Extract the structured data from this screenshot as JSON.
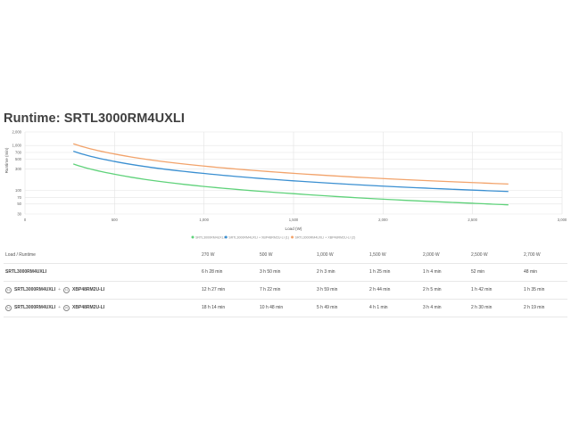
{
  "page": {
    "title": "Runtime: SRTL3000RM4UXLI"
  },
  "chart_data": {
    "type": "line",
    "xlabel": "Load (W)",
    "ylabel": "Runtime (min)",
    "xlim": [
      0,
      3000
    ],
    "ylim": [
      30,
      2000
    ],
    "yscale": "log",
    "grid": true,
    "legend_position": "bottom",
    "x_ticks": [
      0,
      500,
      1000,
      1500,
      2000,
      2500,
      3000
    ],
    "x_tick_labels": [
      "0",
      "500",
      "1,000",
      "1,500",
      "2,000",
      "2,500",
      "3,000"
    ],
    "y_ticks": [
      2000,
      1000,
      700,
      500,
      300,
      100,
      70,
      50,
      30
    ],
    "y_tick_labels": [
      "2,000",
      "1,000",
      "700",
      "500",
      "300",
      "100",
      "70",
      "50",
      "30"
    ],
    "series": [
      {
        "name": "SRTL3000RM4UXLI",
        "color": "#5fd27a",
        "x": [
          270,
          500,
          1000,
          1500,
          2000,
          2500,
          2700
        ],
        "y": [
          388,
          230,
          123,
          85,
          64,
          52,
          48
        ]
      },
      {
        "name": "SRTL3000RM4UXLI + XBP48RM2U-LI (1)",
        "color": "#3a8fd1",
        "x": [
          270,
          500,
          1000,
          1500,
          2000,
          2500,
          2700
        ],
        "y": [
          747,
          442,
          239,
          164,
          125,
          102,
          95
        ]
      },
      {
        "name": "SRTL3000RM4UXLI + XBP48RM2U-LI (2)",
        "color": "#f2a36b",
        "x": [
          270,
          500,
          1000,
          1500,
          2000,
          2500,
          2700
        ],
        "y": [
          1094,
          648,
          349,
          241,
          184,
          150,
          139
        ]
      }
    ]
  },
  "table": {
    "header_label": "Load / Runtime",
    "columns": [
      "270 W",
      "500 W",
      "1,000 W",
      "1,500 W",
      "2,000 W",
      "2,500 W",
      "2,700 W"
    ],
    "rows": [
      {
        "parts": [
          "SRTL3000RM4UXLI"
        ],
        "badges": [],
        "values": [
          "6 h 28 min",
          "3 h 50 min",
          "2 h 3 min",
          "1 h 25 min",
          "1 h 4 min",
          "52 min",
          "48 min"
        ]
      },
      {
        "parts": [
          "SRTL3000RM4UXLI",
          "XBP48RM2U-LI"
        ],
        "badges": [
          "1x",
          "1x"
        ],
        "values": [
          "12 h 27 min",
          "7 h 22 min",
          "3 h 59 min",
          "2 h 44 min",
          "2 h 5 min",
          "1 h 42 min",
          "1 h 35 min"
        ]
      },
      {
        "parts": [
          "SRTL3000RM4UXLI",
          "XBP48RM2U-LI"
        ],
        "badges": [
          "1x",
          "2x"
        ],
        "values": [
          "18 h 14 min",
          "10 h 48 min",
          "5 h 49 min",
          "4 h 1 min",
          "3 h 4 min",
          "2 h 30 min",
          "2 h 19 min"
        ]
      }
    ]
  }
}
